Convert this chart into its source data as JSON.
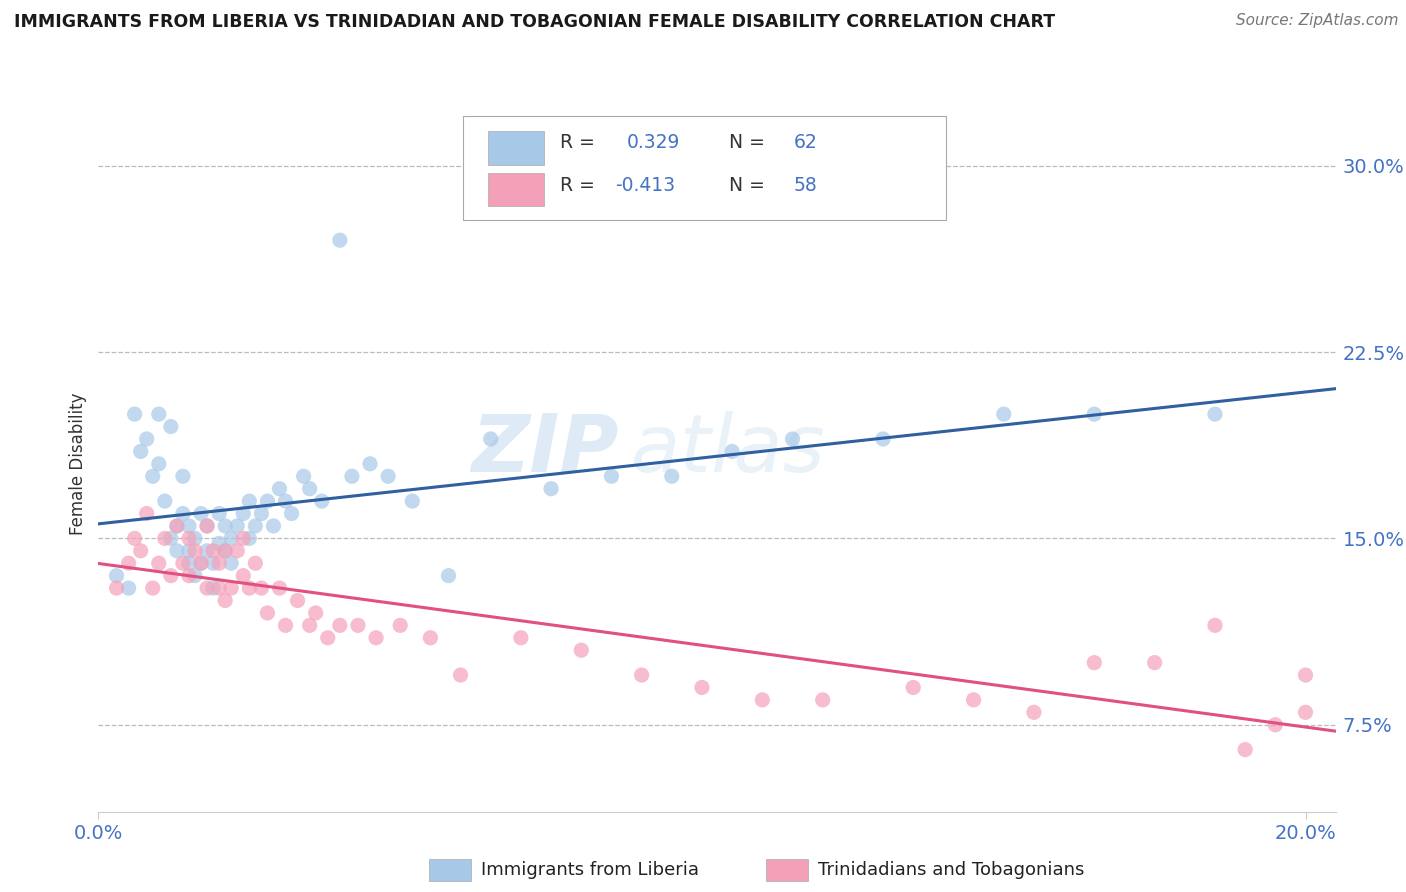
{
  "title": "IMMIGRANTS FROM LIBERIA VS TRINIDADIAN AND TOBAGONIAN FEMALE DISABILITY CORRELATION CHART",
  "source": "Source: ZipAtlas.com",
  "ylabel": "Female Disability",
  "xlim": [
    0.0,
    0.205
  ],
  "ylim": [
    0.04,
    0.32
  ],
  "yticks": [
    0.075,
    0.15,
    0.225,
    0.3
  ],
  "ytick_labels": [
    "7.5%",
    "15.0%",
    "22.5%",
    "30.0%"
  ],
  "xtick_labels": [
    "0.0%",
    "20.0%"
  ],
  "xtick_positions": [
    0.0,
    0.2
  ],
  "legend_r1": "R =",
  "legend_v1": "0.329",
  "legend_n1_label": "N =",
  "legend_n1": "62",
  "legend_r2": "R =",
  "legend_v2": "-0.413",
  "legend_n2_label": "N =",
  "legend_n2": "58",
  "color_blue": "#a8c8e8",
  "color_pink": "#f4a0b8",
  "line_color_blue": "#3060a0",
  "line_color_pink": "#e05080",
  "watermark_zip": "ZIP",
  "watermark_atlas": "atlas",
  "blue_scatter_x": [
    0.003,
    0.005,
    0.006,
    0.007,
    0.008,
    0.009,
    0.01,
    0.01,
    0.011,
    0.012,
    0.012,
    0.013,
    0.013,
    0.014,
    0.014,
    0.015,
    0.015,
    0.015,
    0.016,
    0.016,
    0.017,
    0.017,
    0.018,
    0.018,
    0.019,
    0.019,
    0.02,
    0.02,
    0.021,
    0.021,
    0.022,
    0.022,
    0.023,
    0.024,
    0.025,
    0.025,
    0.026,
    0.027,
    0.028,
    0.029,
    0.03,
    0.031,
    0.032,
    0.034,
    0.035,
    0.037,
    0.04,
    0.042,
    0.045,
    0.048,
    0.052,
    0.058,
    0.065,
    0.075,
    0.085,
    0.095,
    0.105,
    0.115,
    0.13,
    0.15,
    0.165,
    0.185
  ],
  "blue_scatter_y": [
    0.135,
    0.13,
    0.2,
    0.185,
    0.19,
    0.175,
    0.2,
    0.18,
    0.165,
    0.195,
    0.15,
    0.155,
    0.145,
    0.16,
    0.175,
    0.14,
    0.145,
    0.155,
    0.135,
    0.15,
    0.14,
    0.16,
    0.145,
    0.155,
    0.14,
    0.13,
    0.148,
    0.16,
    0.145,
    0.155,
    0.15,
    0.14,
    0.155,
    0.16,
    0.15,
    0.165,
    0.155,
    0.16,
    0.165,
    0.155,
    0.17,
    0.165,
    0.16,
    0.175,
    0.17,
    0.165,
    0.27,
    0.175,
    0.18,
    0.175,
    0.165,
    0.135,
    0.19,
    0.17,
    0.175,
    0.175,
    0.185,
    0.19,
    0.19,
    0.2,
    0.2,
    0.2
  ],
  "pink_scatter_x": [
    0.003,
    0.005,
    0.006,
    0.007,
    0.008,
    0.009,
    0.01,
    0.011,
    0.012,
    0.013,
    0.014,
    0.015,
    0.015,
    0.016,
    0.017,
    0.018,
    0.018,
    0.019,
    0.02,
    0.02,
    0.021,
    0.021,
    0.022,
    0.023,
    0.024,
    0.024,
    0.025,
    0.026,
    0.027,
    0.028,
    0.03,
    0.031,
    0.033,
    0.035,
    0.036,
    0.038,
    0.04,
    0.043,
    0.046,
    0.05,
    0.055,
    0.06,
    0.07,
    0.08,
    0.09,
    0.1,
    0.11,
    0.12,
    0.135,
    0.145,
    0.155,
    0.165,
    0.175,
    0.185,
    0.19,
    0.195,
    0.2,
    0.2
  ],
  "pink_scatter_y": [
    0.13,
    0.14,
    0.15,
    0.145,
    0.16,
    0.13,
    0.14,
    0.15,
    0.135,
    0.155,
    0.14,
    0.135,
    0.15,
    0.145,
    0.14,
    0.155,
    0.13,
    0.145,
    0.13,
    0.14,
    0.145,
    0.125,
    0.13,
    0.145,
    0.135,
    0.15,
    0.13,
    0.14,
    0.13,
    0.12,
    0.13,
    0.115,
    0.125,
    0.115,
    0.12,
    0.11,
    0.115,
    0.115,
    0.11,
    0.115,
    0.11,
    0.095,
    0.11,
    0.105,
    0.095,
    0.09,
    0.085,
    0.085,
    0.09,
    0.085,
    0.08,
    0.1,
    0.1,
    0.115,
    0.065,
    0.075,
    0.095,
    0.08
  ]
}
